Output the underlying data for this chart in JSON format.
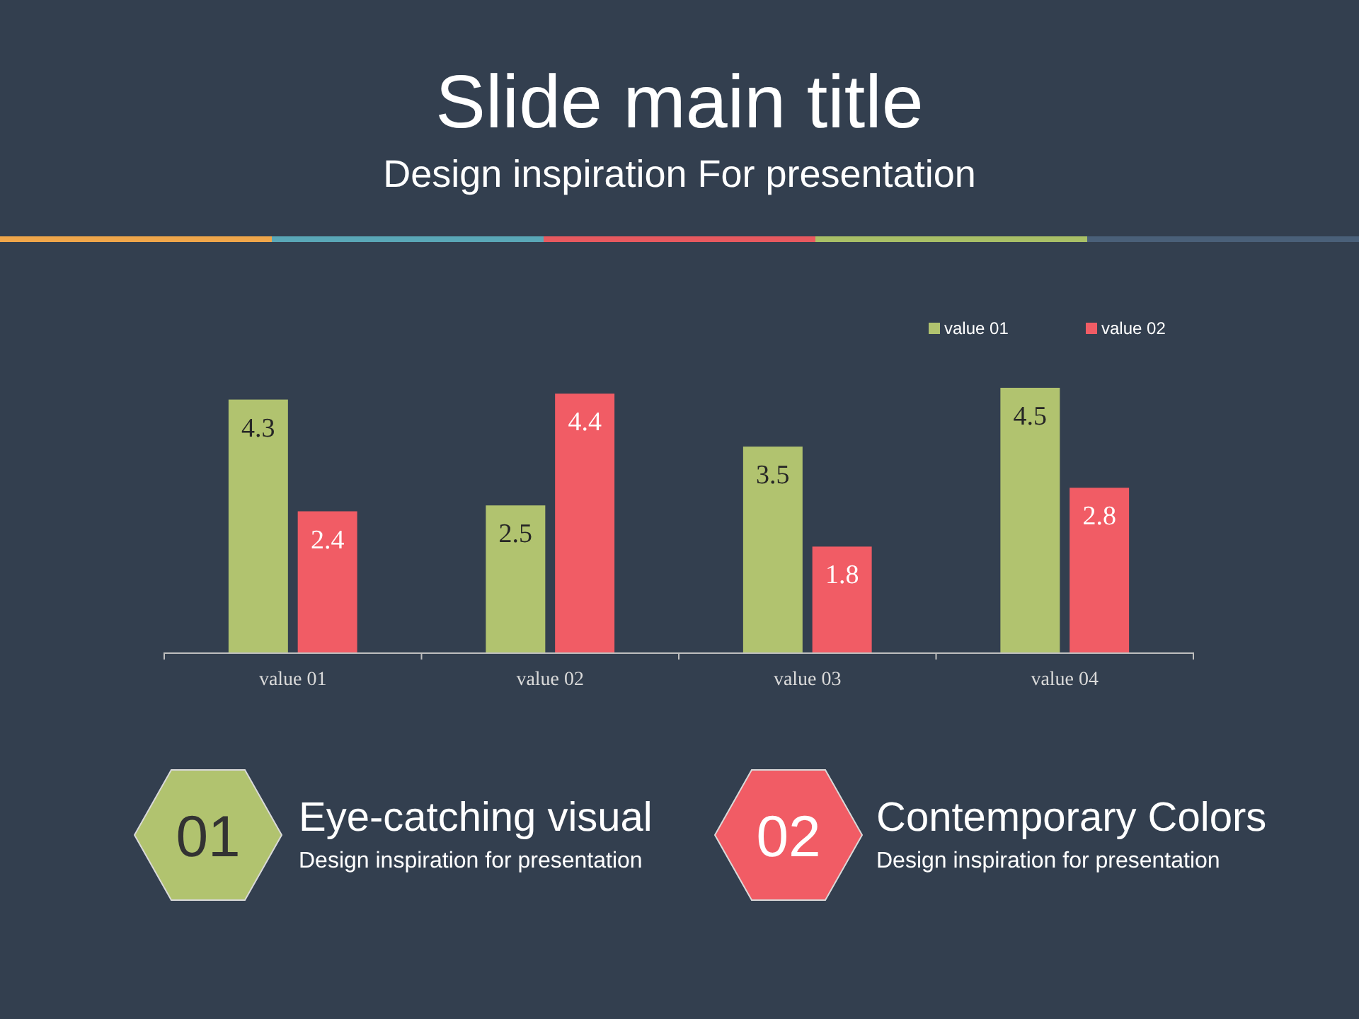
{
  "chart_data": {
    "type": "bar",
    "title": "Slide main title",
    "subtitle": "Design inspiration For presentation",
    "categories": [
      "value 01",
      "value 02",
      "value 03",
      "value 04"
    ],
    "series": [
      {
        "name": "value 01",
        "color": "#b1c36f",
        "values": [
          4.3,
          2.5,
          3.5,
          4.5
        ]
      },
      {
        "name": "value 02",
        "color": "#f15c65",
        "values": [
          2.4,
          4.4,
          1.8,
          2.8
        ]
      }
    ],
    "tick_labels": "x",
    "data_labels": true,
    "legend": "top right",
    "annotations": [
      "01",
      "Eye-catching visual",
      "Design inspiration for presentation",
      "02",
      "Contemporary Colors",
      "Design inspiration for presentation"
    ]
  }
}
